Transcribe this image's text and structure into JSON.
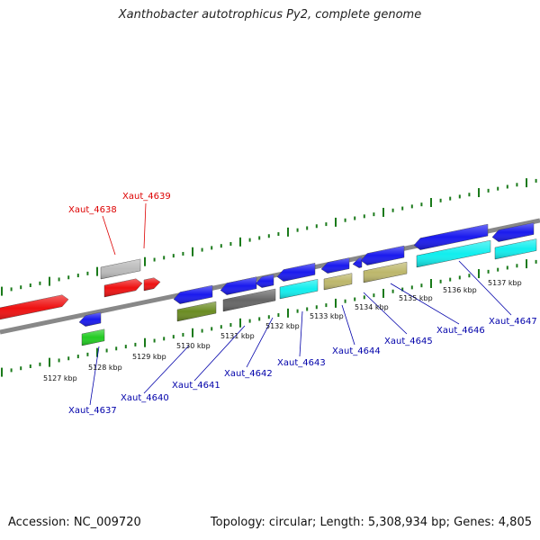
{
  "title": "Xanthobacter autotrophicus Py2, complete genome",
  "footer": {
    "accession": "Accession: NC_009720",
    "summary": "Topology: circular; Length: 5,308,934 bp; Genes: 4,805"
  },
  "scale_labels": [
    "5127 kbp",
    "5128 kbp",
    "5129 kbp",
    "5130 kbp",
    "5131 kbp",
    "5132 kbp",
    "5133 kbp",
    "5134 kbp",
    "5135 kbp",
    "5136 kbp",
    "5137 kbp"
  ],
  "genes": [
    {
      "name": "Xaut_4637",
      "color": "#0000aa"
    },
    {
      "name": "Xaut_4638",
      "color": "#dd0000"
    },
    {
      "name": "Xaut_4639",
      "color": "#dd0000"
    },
    {
      "name": "Xaut_4640",
      "color": "#0000aa"
    },
    {
      "name": "Xaut_4641",
      "color": "#0000aa"
    },
    {
      "name": "Xaut_4642",
      "color": "#0000aa"
    },
    {
      "name": "Xaut_4643",
      "color": "#0000aa"
    },
    {
      "name": "Xaut_4644",
      "color": "#0000aa"
    },
    {
      "name": "Xaut_4645",
      "color": "#0000aa"
    },
    {
      "name": "Xaut_4646",
      "color": "#0000aa"
    },
    {
      "name": "Xaut_4647",
      "color": "#0000aa"
    }
  ],
  "feature_colors": {
    "backbone": "#888888",
    "tick": "#1a7a1a",
    "blue": "#1a1aee",
    "red": "#ee1111",
    "grey": "#bbbbbb",
    "green": "#22cc22",
    "olive": "#6b8c23",
    "darkgrey": "#666666",
    "cyan": "#11eeee",
    "khaki": "#bdb76b"
  }
}
